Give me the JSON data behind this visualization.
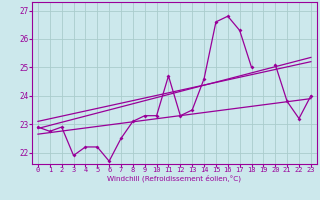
{
  "xlabel": "Windchill (Refroidissement éolien,°C)",
  "background_color": "#cce8ec",
  "grid_color": "#aacccc",
  "line_color": "#990099",
  "xlim": [
    -0.5,
    23.5
  ],
  "ylim": [
    21.6,
    27.3
  ],
  "yticks": [
    22,
    23,
    24,
    25,
    26,
    27
  ],
  "xticks": [
    0,
    1,
    2,
    3,
    4,
    5,
    6,
    7,
    8,
    9,
    10,
    11,
    12,
    13,
    14,
    15,
    16,
    17,
    18,
    19,
    20,
    21,
    22,
    23
  ],
  "x_data": [
    0,
    1,
    2,
    3,
    4,
    5,
    6,
    7,
    8,
    9,
    10,
    11,
    12,
    13,
    14,
    15,
    16,
    17,
    18,
    19,
    20,
    21,
    22,
    23
  ],
  "y_main": [
    22.9,
    22.75,
    22.9,
    21.9,
    22.2,
    22.2,
    21.7,
    22.5,
    23.1,
    23.3,
    23.3,
    24.7,
    23.3,
    23.5,
    24.6,
    26.6,
    26.8,
    26.3,
    25.0,
    null,
    25.1,
    23.8,
    23.2,
    24.0
  ],
  "linear_fits": [
    {
      "x": [
        0,
        23
      ],
      "y": [
        22.85,
        25.35
      ]
    },
    {
      "x": [
        0,
        23
      ],
      "y": [
        23.1,
        25.2
      ]
    },
    {
      "x": [
        0,
        23
      ],
      "y": [
        22.65,
        23.9
      ]
    }
  ]
}
